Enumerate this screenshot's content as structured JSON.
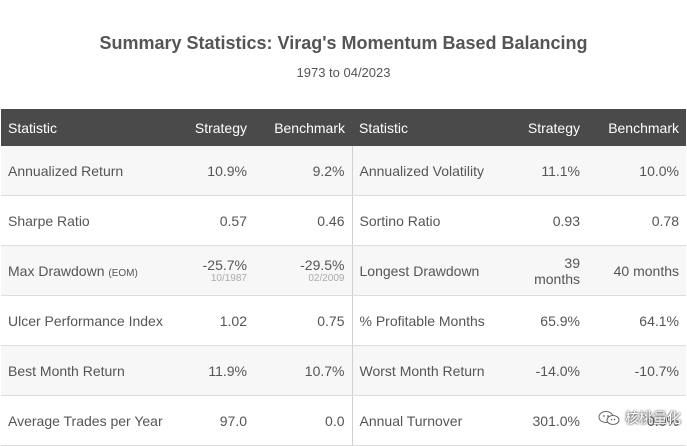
{
  "header": {
    "title": "Summary Statistics: Virag's Momentum Based Balancing",
    "subtitle": "1973 to 04/2023"
  },
  "table": {
    "columns": [
      "Statistic",
      "Strategy",
      "Benchmark",
      "Statistic",
      "Strategy",
      "Benchmark"
    ],
    "rows": [
      {
        "label_left": "Annualized Return",
        "strategy_left": "10.9%",
        "benchmark_left": "9.2%",
        "label_right": "Annualized Volatility",
        "strategy_right": "11.1%",
        "benchmark_right": "10.0%"
      },
      {
        "label_left": "Sharpe Ratio",
        "strategy_left": "0.57",
        "benchmark_left": "0.46",
        "label_right": "Sortino Ratio",
        "strategy_right": "0.93",
        "benchmark_right": "0.78"
      },
      {
        "label_left": "Max Drawdown",
        "label_left_suffix": "(EOM)",
        "strategy_left": "-25.7%",
        "strategy_left_date": "10/1987",
        "benchmark_left": "-29.5%",
        "benchmark_left_date": "02/2009",
        "label_right": "Longest Drawdown",
        "strategy_right": "39 months",
        "benchmark_right": "40 months"
      },
      {
        "label_left": "Ulcer Performance Index",
        "strategy_left": "1.02",
        "benchmark_left": "0.75",
        "label_right": "% Profitable Months",
        "strategy_right": "65.9%",
        "benchmark_right": "64.1%"
      },
      {
        "label_left": "Best Month Return",
        "strategy_left": "11.9%",
        "benchmark_left": "10.7%",
        "label_right": "Worst Month Return",
        "strategy_right": "-14.0%",
        "benchmark_right": "-10.7%"
      },
      {
        "label_left": "Average Trades per Year",
        "strategy_left": "97.0",
        "benchmark_left": "0.0",
        "label_right": "Annual Turnover",
        "strategy_right": "301.0%",
        "benchmark_right": "0.0%"
      }
    ]
  },
  "watermark": {
    "text": "核桃量化",
    "icon": "wechat-icon"
  }
}
